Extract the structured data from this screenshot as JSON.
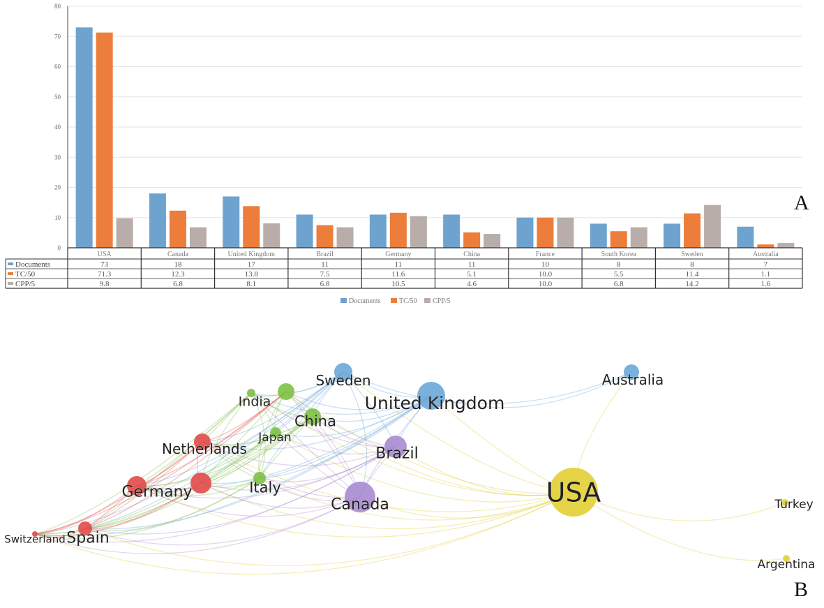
{
  "panel_labels": {
    "a": "A",
    "b": "B"
  },
  "chart_data": {
    "type": "bar",
    "title": "",
    "xlabel": "",
    "ylabel": "",
    "ylim": [
      0,
      80
    ],
    "yticks": [
      0,
      10,
      20,
      30,
      40,
      50,
      60,
      70,
      80
    ],
    "grid": true,
    "legend_position": "bottom-center",
    "categories": [
      "USA",
      "Canada",
      "United Kingdom",
      "Brazil",
      "Germany",
      "China",
      "France",
      "South Korea",
      "Sweden",
      "Australia"
    ],
    "series": [
      {
        "name": "Documents",
        "color": "#6fa3cf",
        "values": [
          73,
          18,
          17,
          11,
          11,
          11,
          10,
          8,
          8,
          7
        ],
        "labels": [
          "73",
          "18",
          "17",
          "11",
          "11",
          "11",
          "10",
          "8",
          "8",
          "7"
        ]
      },
      {
        "name": "TC/50",
        "color": "#ec7d3a",
        "values": [
          71.3,
          12.3,
          13.8,
          7.5,
          11.6,
          5.1,
          10.0,
          5.5,
          11.4,
          1.1
        ],
        "labels": [
          "71.3",
          "12.3",
          "13.8",
          "7.5",
          "11.6",
          "5.1",
          "10.0",
          "5.5",
          "11.4",
          "1.1"
        ]
      },
      {
        "name": "CPP/5",
        "color": "#b8ada8",
        "values": [
          9.8,
          6.8,
          8.1,
          6.8,
          10.5,
          4.6,
          10.0,
          6.8,
          14.2,
          1.6
        ],
        "labels": [
          "9.8",
          "6.8",
          "8.1",
          "6.8",
          "10.5",
          "4.6",
          "10.0",
          "6.8",
          "14.2",
          "1.6"
        ]
      }
    ]
  },
  "network": {
    "clusters": {
      "red": "#e24a4a",
      "green": "#7ec144",
      "blue": "#6aa7d8",
      "purple": "#a88bd2",
      "yellow": "#e3cf34"
    },
    "nodes": [
      {
        "id": "usa",
        "label": "USA",
        "cluster": "yellow"
      },
      {
        "id": "turkey",
        "label": "Turkey",
        "cluster": "yellow"
      },
      {
        "id": "argentina",
        "label": "Argentina",
        "cluster": "yellow"
      },
      {
        "id": "australia",
        "label": "Australia",
        "cluster": "blue"
      },
      {
        "id": "uk",
        "label": "United Kingdom",
        "cluster": "blue"
      },
      {
        "id": "sweden",
        "label": "Sweden",
        "cluster": "blue"
      },
      {
        "id": "brazil",
        "label": "Brazil",
        "cluster": "purple"
      },
      {
        "id": "canada",
        "label": "Canada",
        "cluster": "purple"
      },
      {
        "id": "china",
        "label": "China",
        "cluster": "green"
      },
      {
        "id": "india",
        "label": "India",
        "cluster": "green"
      },
      {
        "id": "japan",
        "label": "Japan",
        "cluster": "green"
      },
      {
        "id": "italy",
        "label": "Italy",
        "cluster": "green"
      },
      {
        "id": "netherlands",
        "label": "Netherlands",
        "cluster": "red"
      },
      {
        "id": "germany",
        "label": "Germany",
        "cluster": "red"
      },
      {
        "id": "spain",
        "label": "Spain",
        "cluster": "red"
      },
      {
        "id": "switzerland",
        "label": "Switzerland",
        "cluster": "red"
      },
      {
        "id": "g2",
        "label": "",
        "cluster": "green"
      },
      {
        "id": "r2",
        "label": "",
        "cluster": "red"
      }
    ]
  }
}
